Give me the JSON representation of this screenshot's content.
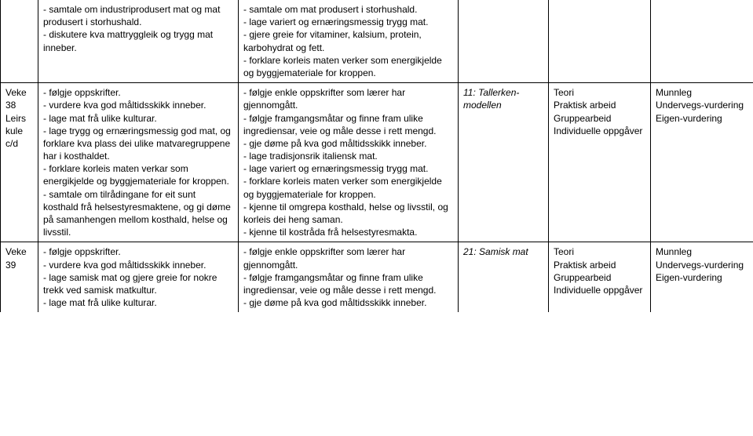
{
  "rows": [
    {
      "week": "",
      "goals": "- samtale om industriprodusert mat og mat produsert i storhushald.\n- diskutere kva mattryggleik og trygg mat inneber.",
      "criteria": "- samtale om mat produsert i storhushald.\n- lage variert og ernæringsmessig trygg mat.\n- gjere greie for vitaminer, kalsium, protein, karbohydrat og fett.\n- forklare korleis maten verker som energikjelde og byggjemateriale for kroppen.",
      "topic": "",
      "method": "",
      "assessment": ""
    },
    {
      "week": "Veke 38\nLeirs kule c/d",
      "goals": "- følgje oppskrifter.\n- vurdere kva god måltidsskikk inneber.\n- lage mat frå ulike kulturar.\n- lage trygg og ernæringsmessig god mat, og forklare kva plass dei ulike matvaregruppene har i kosthaldet.\n- forklare korleis maten verkar som energikjelde og byggjemateriale for kroppen.\n- samtale om tilrådingane for eit sunt kosthald frå helsestyresmaktene, og gi døme på samanhengen mellom kosthald, helse og livsstil.",
      "criteria": "- følgje enkle oppskrifter som lærer har gjennomgått.\n- følgje framgangsmåtar og finne fram ulike ingrediensar, veie og måle desse i rett mengd.\n- gje døme på kva god måltidsskikk inneber.\n- lage tradisjonsrik italiensk mat.\n- lage variert og ernæringsmessig trygg mat.\n- forklare korleis maten verker som energikjelde og byggjemateriale for kroppen.\n- kjenne til omgrepa kosthald, helse og livsstil, og korleis dei heng saman.\n- kjenne til kostråda frå helsestyresmakta.",
      "topic": "11: Tallerken-modellen",
      "method": "Teori\nPraktisk arbeid\nGruppearbeid\nIndividuelle oppgåver",
      "assessment": "Munnleg\nUndervegs-vurdering\nEigen-vurdering"
    },
    {
      "week": "Veke 39",
      "goals": "- følgje oppskrifter.\n- vurdere kva god måltidsskikk inneber.\n- lage samisk mat og gjere greie for nokre trekk ved samisk matkultur.\n- lage mat frå ulike kulturar.",
      "criteria": "- følgje enkle oppskrifter som lærer har gjennomgått.\n- følgje framgangsmåtar og finne fram ulike ingrediensar, veie og måle desse i rett mengd.\n- gje døme på kva god måltidsskikk inneber.",
      "topic": "21: Samisk mat",
      "method": "Teori\nPraktisk arbeid\nGruppearbeid\nIndividuelle oppgåver",
      "assessment": "Munnleg\nUndervegs-vurdering\nEigen-vurdering"
    }
  ]
}
